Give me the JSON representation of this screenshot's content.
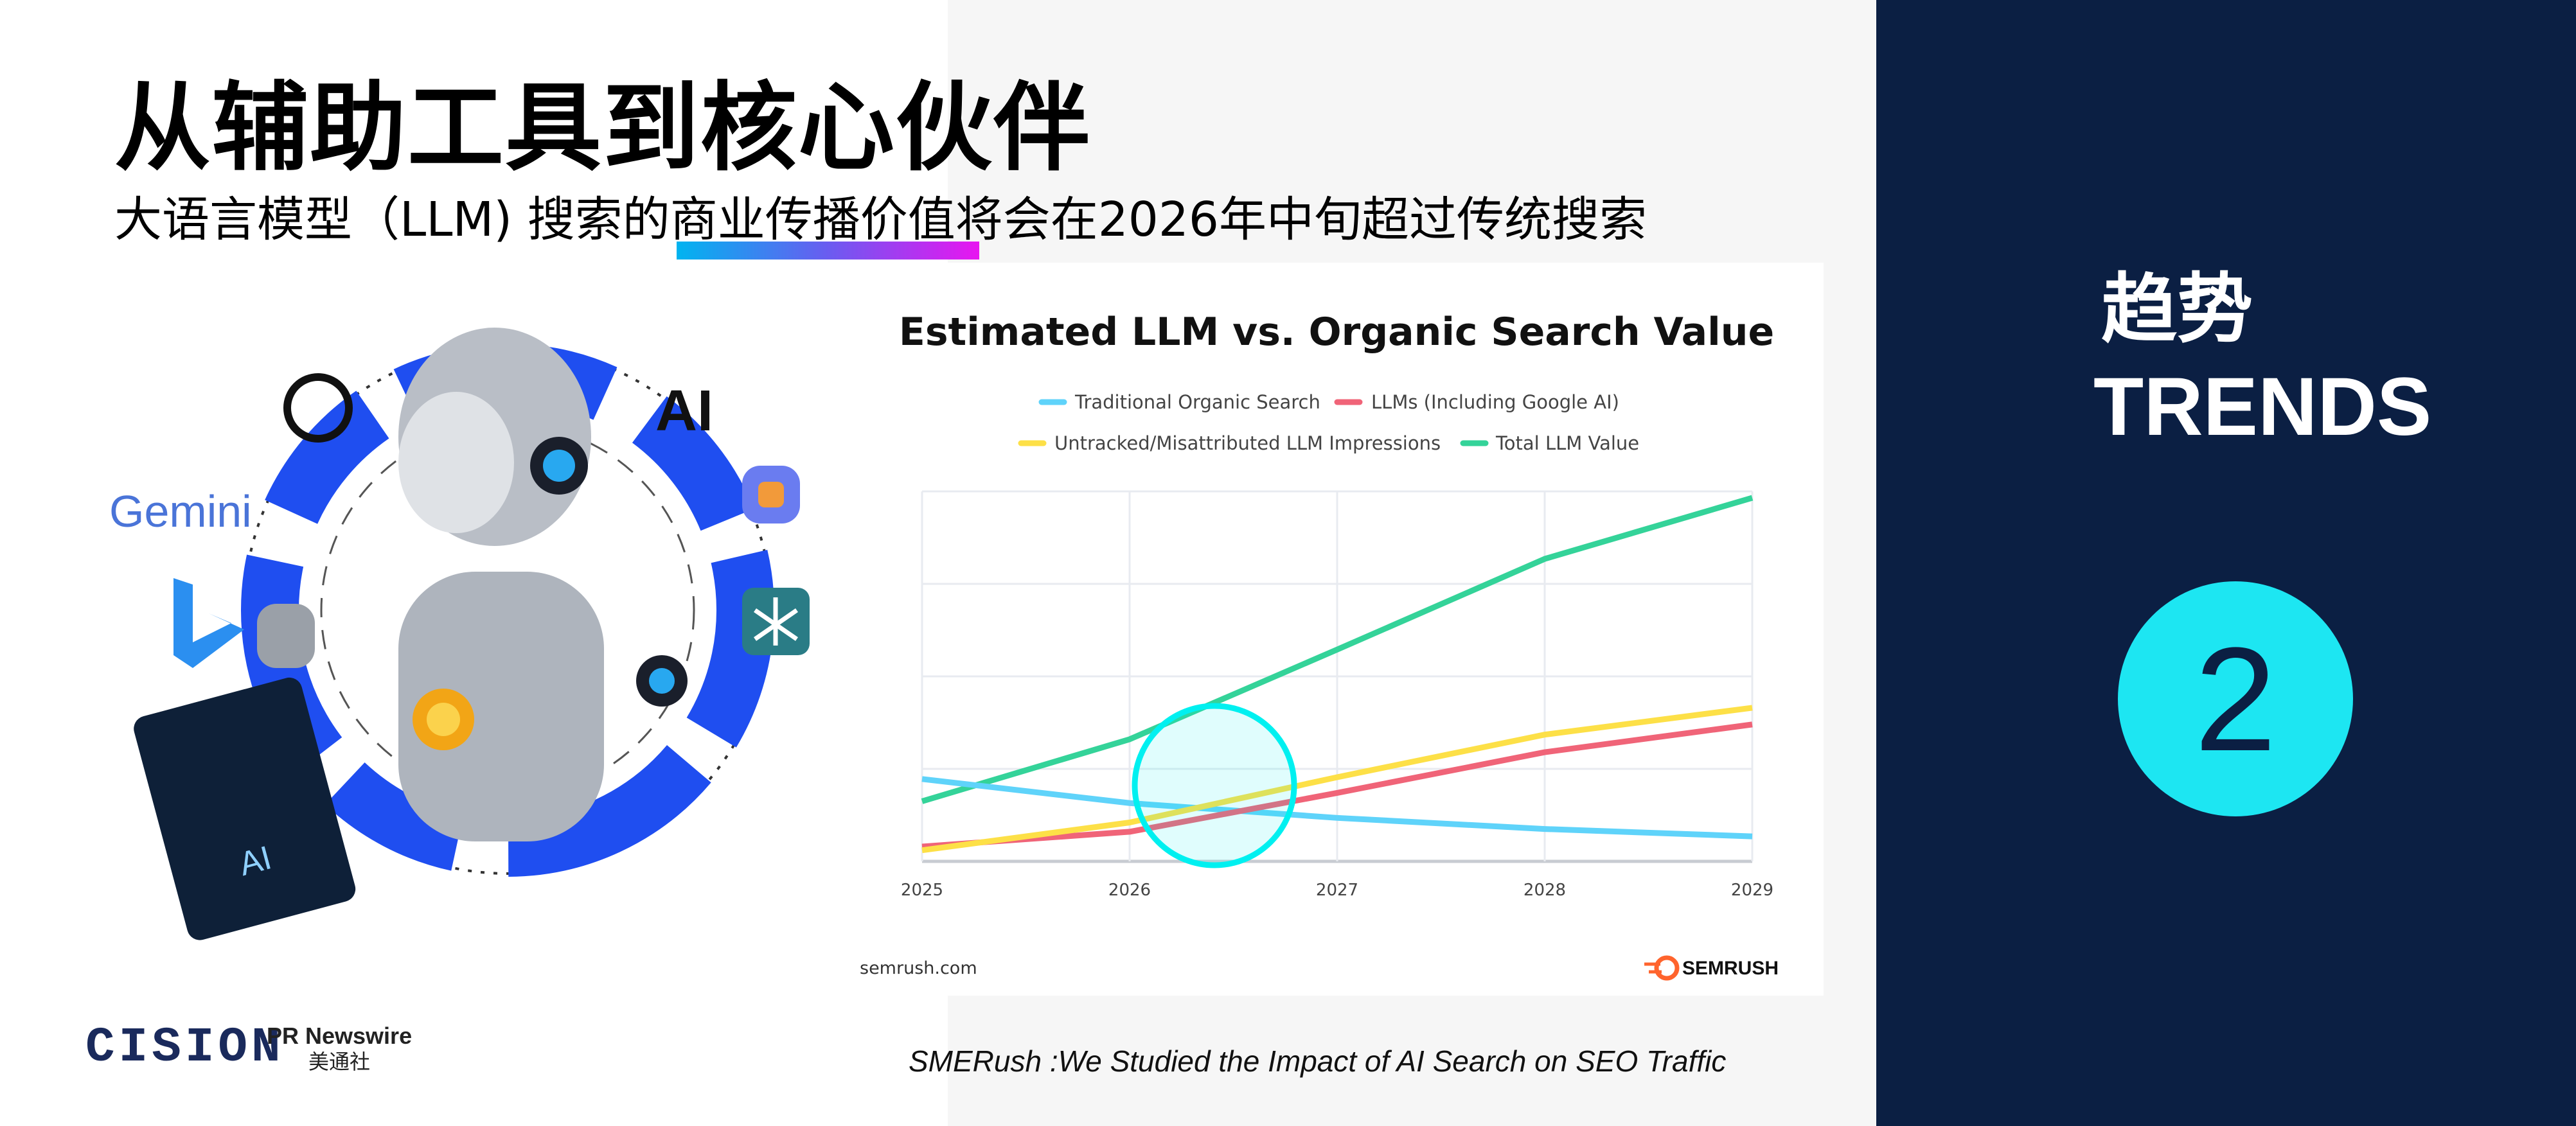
{
  "header": {
    "title": "从辅助工具到核心伙伴",
    "subtitle": "大语言模型（LLM) 搜索的商业传播价值将会在2026年中旬超过传统搜索"
  },
  "illustration": {
    "logos": [
      "Gemini",
      "AI",
      "chatgpt-icon",
      "copilot-icon",
      "bing-icon",
      "perplexity-icon"
    ],
    "tablet_text": "AI"
  },
  "footer_logos": {
    "cision": "CISION",
    "prnewswire": "PR Newswire",
    "prnewswire_cn": "美通社"
  },
  "caption": "SMERush :We Studied the Impact of AI Search on SEO Traffic",
  "trend": {
    "label_cn": "趋势",
    "label_en": "TRENDS",
    "number": "2",
    "badge_color": "#1de6f2",
    "panel_color": "#0b1f43"
  },
  "chart_data": {
    "type": "line",
    "title": "Estimated LLM vs. Organic Search Value",
    "x": [
      "2025",
      "2026",
      "2027",
      "2028",
      "2029"
    ],
    "xlabel": "",
    "ylabel": "",
    "ylim": [
      0,
      4
    ],
    "y_tick_labels_shown": false,
    "grid": true,
    "legend_position": "top",
    "series": [
      {
        "name": "Traditional Organic Search",
        "color": "#5fd3fa",
        "values": [
          0.89,
          0.63,
          0.47,
          0.35,
          0.27
        ]
      },
      {
        "name": "LLMs (Including Google AI)",
        "color": "#f06478",
        "values": [
          0.16,
          0.32,
          0.74,
          1.18,
          1.48
        ]
      },
      {
        "name": "Untracked/Misattributed LLM Impressions",
        "color": "#fde047",
        "values": [
          0.12,
          0.42,
          0.91,
          1.37,
          1.66
        ]
      },
      {
        "name": "Total LLM Value",
        "color": "#34d399",
        "values": [
          0.65,
          1.32,
          2.29,
          3.27,
          3.93
        ]
      }
    ],
    "annotation": {
      "type": "circle-highlight",
      "x": "2026.4",
      "color": "#00f0f0"
    },
    "source": "semrush.com",
    "brand": "SEMRUSH"
  }
}
